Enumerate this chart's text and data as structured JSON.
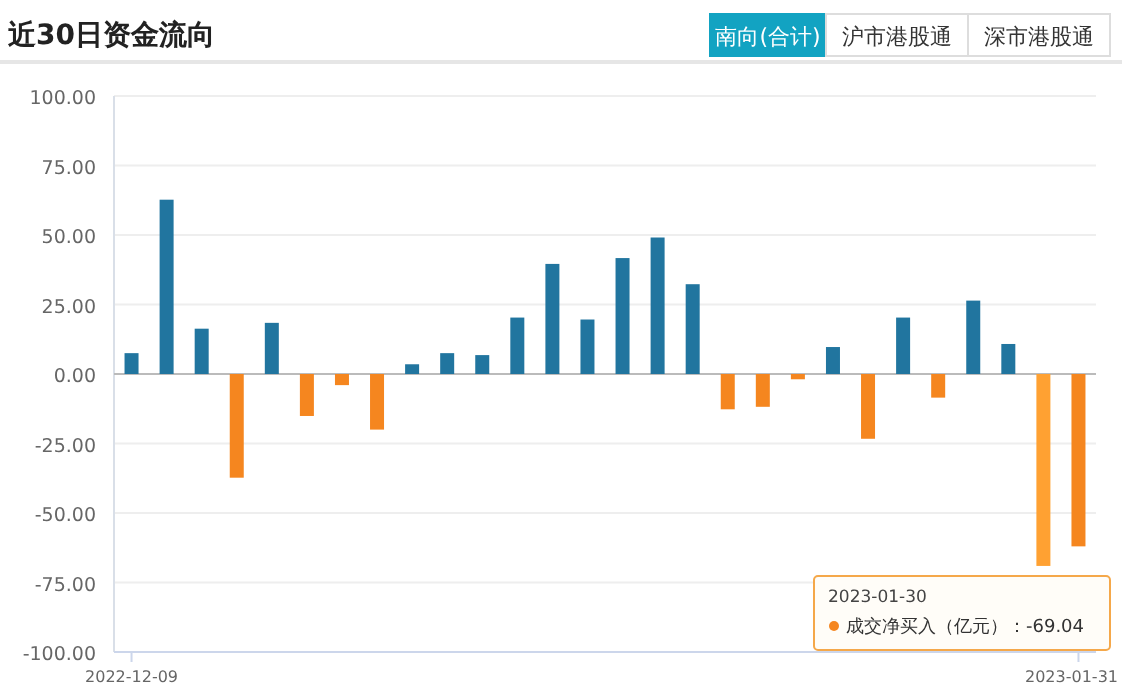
{
  "chart_data": {
    "type": "bar",
    "title": "近30日资金流向",
    "categories": [
      "2022-12-09",
      null,
      null,
      null,
      null,
      null,
      null,
      null,
      null,
      null,
      null,
      null,
      null,
      null,
      null,
      null,
      null,
      null,
      null,
      null,
      null,
      null,
      null,
      null,
      null,
      null,
      null,
      "2023-01-31"
    ],
    "values": [
      7.5,
      62.7,
      16.3,
      -37.3,
      18.4,
      -15.1,
      -4.0,
      -20.0,
      3.5,
      7.5,
      6.8,
      20.3,
      39.6,
      19.6,
      41.7,
      49.1,
      32.3,
      -12.7,
      -11.8,
      -1.9,
      9.7,
      -23.3,
      20.3,
      -8.5,
      26.4,
      10.8,
      -69.04,
      -62.0
    ],
    "colors": [
      "#21759f",
      "#21759f",
      "#21759f",
      "#f5861f",
      "#21759f",
      "#f5861f",
      "#f5861f",
      "#f5861f",
      "#21759f",
      "#21759f",
      "#21759f",
      "#21759f",
      "#21759f",
      "#21759f",
      "#21759f",
      "#21759f",
      "#21759f",
      "#f5861f",
      "#f5861f",
      "#f5861f",
      "#21759f",
      "#f5861f",
      "#21759f",
      "#f5861f",
      "#21759f",
      "#21759f",
      "#ffa132",
      "#f5861f"
    ],
    "ylim": [
      -100,
      100
    ],
    "yticks": [
      {
        "value": -100,
        "label": "-100.00"
      },
      {
        "value": -75,
        "label": "-75.00"
      },
      {
        "value": -50,
        "label": "-50.00"
      },
      {
        "value": -25,
        "label": "-25.00"
      },
      {
        "value": 0,
        "label": "0.00"
      },
      {
        "value": 25,
        "label": "25.00"
      },
      {
        "value": 50,
        "label": "50.00"
      },
      {
        "value": 75,
        "label": "75.00"
      },
      {
        "value": 100,
        "label": "100.00"
      }
    ],
    "grid": "y",
    "annotations": [
      "南向(合计)",
      "沪市港股通",
      "深市港股通",
      "2023-01-30",
      "成交净买入（亿元）：-69.04"
    ]
  }
}
